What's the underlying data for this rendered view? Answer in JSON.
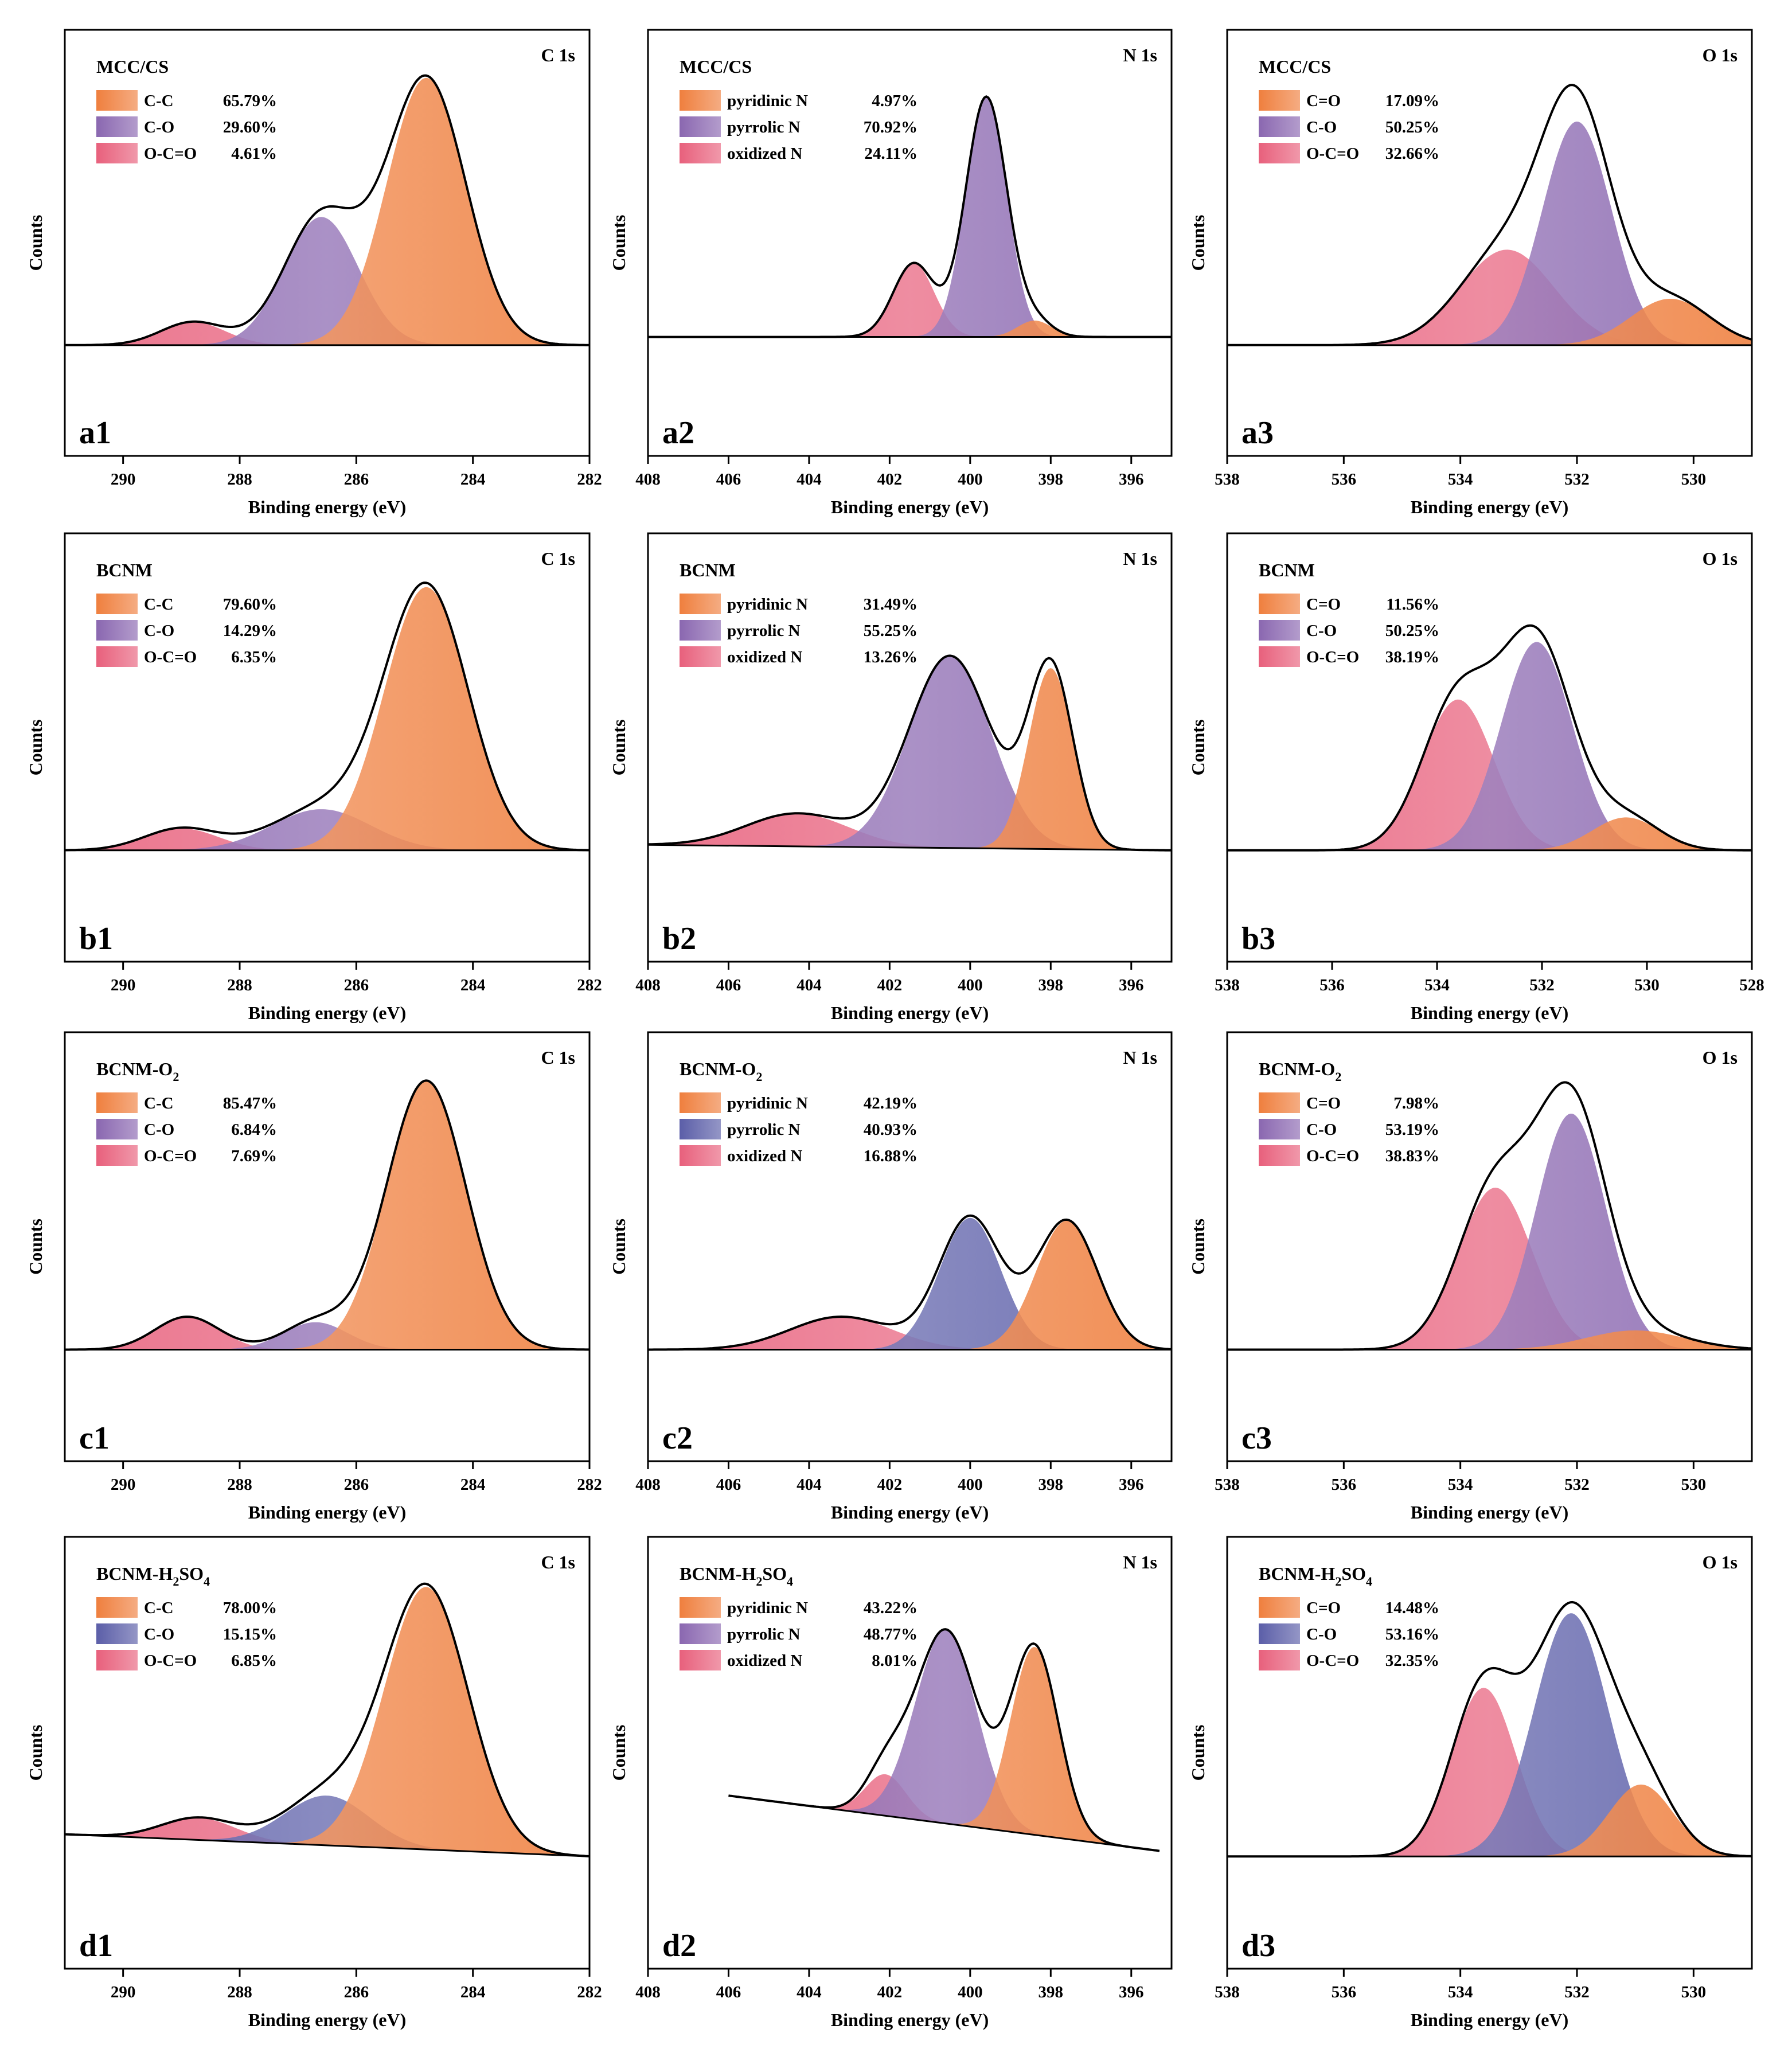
{
  "figure": {
    "colors": {
      "orange": "#ef7f3e",
      "purple": "#8a67b0",
      "blue": "#5b5ea8",
      "pink": "#e8607c",
      "envelope": "#000000"
    },
    "xlabel": "Binding energy (eV)",
    "ylabel": "Counts"
  },
  "chart_data": [
    {
      "id": "a1",
      "type": "area",
      "title": "MCC/CS",
      "region": "C 1s",
      "panel_label": "a1",
      "xlabel": "Binding energy (eV)",
      "ylabel": "Counts",
      "xlim": [
        291,
        282
      ],
      "xticks": [
        290,
        288,
        286,
        284,
        282
      ],
      "baseline": [
        0.0,
        0.0
      ],
      "legend": [
        {
          "label": "C-C",
          "value": "65.79%",
          "color": "orange"
        },
        {
          "label": "C-O",
          "value": "29.60%",
          "color": "purple"
        },
        {
          "label": "O-C=O",
          "value": "4.61%",
          "color": "pink"
        }
      ],
      "peaks": [
        {
          "name": "C-C",
          "center": 284.8,
          "height": 0.98,
          "fwhm": 1.6,
          "color": "orange"
        },
        {
          "name": "C-O",
          "center": 286.6,
          "height": 0.47,
          "fwhm": 1.5,
          "color": "purple"
        },
        {
          "name": "O-C=O",
          "center": 288.8,
          "height": 0.085,
          "fwhm": 1.3,
          "color": "pink"
        }
      ]
    },
    {
      "id": "a2",
      "type": "area",
      "title": "MCC/CS",
      "region": "N 1s",
      "panel_label": "a2",
      "xlabel": "Binding energy (eV)",
      "ylabel": "Counts",
      "xlim": [
        408,
        395
      ],
      "xticks": [
        408,
        406,
        404,
        402,
        400,
        398,
        396
      ],
      "baseline": [
        0.03,
        0.03
      ],
      "legend": [
        {
          "label": "pyridinic N",
          "value": "4.97%",
          "color": "orange"
        },
        {
          "label": "pyrrolic N",
          "value": "70.92%",
          "color": "purple"
        },
        {
          "label": "oxidized N",
          "value": "24.11%",
          "color": "pink"
        }
      ],
      "peaks": [
        {
          "name": "pyridinic N",
          "center": 398.4,
          "height": 0.06,
          "fwhm": 1.0,
          "color": "orange"
        },
        {
          "name": "pyrrolic N",
          "center": 399.6,
          "height": 0.88,
          "fwhm": 1.2,
          "color": "purple"
        },
        {
          "name": "oxidized N",
          "center": 401.4,
          "height": 0.27,
          "fwhm": 1.2,
          "color": "pink"
        }
      ]
    },
    {
      "id": "a3",
      "type": "area",
      "title": "MCC/CS",
      "region": "O 1s",
      "panel_label": "a3",
      "xlabel": "Binding energy (eV)",
      "ylabel": "Counts",
      "xlim": [
        538,
        529
      ],
      "xticks": [
        538,
        536,
        534,
        532,
        530
      ],
      "baseline": [
        0.0,
        0.0
      ],
      "legend": [
        {
          "label": "C=O",
          "value": "17.09%",
          "color": "orange"
        },
        {
          "label": "C-O",
          "value": "50.25%",
          "color": "purple"
        },
        {
          "label": "O-C=O",
          "value": "32.66%",
          "color": "pink"
        }
      ],
      "peaks": [
        {
          "name": "C=O",
          "center": 530.4,
          "height": 0.17,
          "fwhm": 1.6,
          "color": "orange"
        },
        {
          "name": "C-O",
          "center": 532.0,
          "height": 0.82,
          "fwhm": 1.4,
          "color": "purple"
        },
        {
          "name": "O-C=O",
          "center": 533.2,
          "height": 0.35,
          "fwhm": 1.9,
          "color": "pink"
        }
      ]
    },
    {
      "id": "b1",
      "type": "area",
      "title": "BCNM",
      "region": "C 1s",
      "panel_label": "b1",
      "xlabel": "Binding energy (eV)",
      "ylabel": "Counts",
      "xlim": [
        291,
        282
      ],
      "xticks": [
        290,
        288,
        286,
        284,
        282
      ],
      "baseline": [
        0.0,
        0.0
      ],
      "legend": [
        {
          "label": "C-C",
          "value": "79.60%",
          "color": "orange"
        },
        {
          "label": "C-O",
          "value": "14.29%",
          "color": "purple"
        },
        {
          "label": "O-C=O",
          "value": "6.35%",
          "color": "pink"
        }
      ],
      "peaks": [
        {
          "name": "C-C",
          "center": 284.8,
          "height": 0.96,
          "fwhm": 1.7,
          "color": "orange"
        },
        {
          "name": "C-O",
          "center": 286.6,
          "height": 0.15,
          "fwhm": 2.0,
          "color": "purple"
        },
        {
          "name": "O-C=O",
          "center": 289.0,
          "height": 0.08,
          "fwhm": 1.5,
          "color": "pink"
        }
      ]
    },
    {
      "id": "b2",
      "type": "area",
      "title": "BCNM",
      "region": "N 1s",
      "panel_label": "b2",
      "xlabel": "Binding energy (eV)",
      "ylabel": "Counts",
      "xlim": [
        408,
        395
      ],
      "xticks": [
        408,
        406,
        404,
        402,
        400,
        398,
        396
      ],
      "baseline": [
        0.02,
        0.0
      ],
      "legend": [
        {
          "label": "pyridinic N",
          "value": "31.49%",
          "color": "orange"
        },
        {
          "label": "pyrrolic N",
          "value": "55.25%",
          "color": "purple"
        },
        {
          "label": "oxidized N",
          "value": "13.26%",
          "color": "pink"
        }
      ],
      "peaks": [
        {
          "name": "pyridinic N",
          "center": 398.0,
          "height": 0.66,
          "fwhm": 1.3,
          "color": "orange"
        },
        {
          "name": "pyrrolic N",
          "center": 400.5,
          "height": 0.7,
          "fwhm": 2.4,
          "color": "purple"
        },
        {
          "name": "oxidized N",
          "center": 404.3,
          "height": 0.12,
          "fwhm": 3.0,
          "color": "pink"
        }
      ]
    },
    {
      "id": "b3",
      "type": "area",
      "title": "BCNM",
      "region": "O 1s",
      "panel_label": "b3",
      "xlabel": "Binding energy (eV)",
      "ylabel": "Counts",
      "xlim": [
        538,
        528
      ],
      "xticks": [
        538,
        536,
        534,
        532,
        530,
        528
      ],
      "baseline": [
        0.0,
        0.0
      ],
      "legend": [
        {
          "label": "C=O",
          "value": "11.56%",
          "color": "orange"
        },
        {
          "label": "C-O",
          "value": "50.25%",
          "color": "purple"
        },
        {
          "label": "O-C=O",
          "value": "38.19%",
          "color": "pink"
        }
      ],
      "peaks": [
        {
          "name": "C=O",
          "center": 530.4,
          "height": 0.12,
          "fwhm": 1.5,
          "color": "orange"
        },
        {
          "name": "C-O",
          "center": 532.1,
          "height": 0.76,
          "fwhm": 1.6,
          "color": "purple"
        },
        {
          "name": "O-C=O",
          "center": 533.6,
          "height": 0.55,
          "fwhm": 1.6,
          "color": "pink"
        }
      ]
    },
    {
      "id": "c1",
      "type": "area",
      "title": "BCNM-O",
      "title_sub": "2",
      "region": "C 1s",
      "panel_label": "c1",
      "xlabel": "Binding energy (eV)",
      "ylabel": "Counts",
      "xlim": [
        291,
        282
      ],
      "xticks": [
        290,
        288,
        286,
        284,
        282
      ],
      "baseline": [
        0.0,
        0.0
      ],
      "legend": [
        {
          "label": "C-C",
          "value": "85.47%",
          "color": "orange"
        },
        {
          "label": "C-O",
          "value": "6.84%",
          "color": "purple"
        },
        {
          "label": "O-C=O",
          "value": "7.69%",
          "color": "pink"
        }
      ],
      "peaks": [
        {
          "name": "C-C",
          "center": 284.8,
          "height": 0.98,
          "fwhm": 1.6,
          "color": "orange"
        },
        {
          "name": "C-O",
          "center": 286.7,
          "height": 0.1,
          "fwhm": 1.3,
          "color": "purple"
        },
        {
          "name": "O-C=O",
          "center": 288.9,
          "height": 0.12,
          "fwhm": 1.3,
          "color": "pink"
        }
      ]
    },
    {
      "id": "c2",
      "type": "area",
      "title": "BCNM-O",
      "title_sub": "2",
      "region": "N 1s",
      "panel_label": "c2",
      "xlabel": "Binding energy (eV)",
      "ylabel": "Counts",
      "xlim": [
        408,
        395
      ],
      "xticks": [
        408,
        406,
        404,
        402,
        400,
        398,
        396
      ],
      "baseline": [
        0.0,
        0.0
      ],
      "legend": [
        {
          "label": "pyridinic N",
          "value": "42.19%",
          "color": "orange"
        },
        {
          "label": "pyrrolic N",
          "value": "40.93%",
          "color": "blue"
        },
        {
          "label": "oxidized N",
          "value": "16.88%",
          "color": "pink"
        }
      ],
      "peaks": [
        {
          "name": "pyridinic N",
          "center": 397.6,
          "height": 0.47,
          "fwhm": 1.8,
          "color": "orange"
        },
        {
          "name": "pyrrolic N",
          "center": 400.0,
          "height": 0.48,
          "fwhm": 1.8,
          "color": "blue"
        },
        {
          "name": "oxidized N",
          "center": 403.2,
          "height": 0.12,
          "fwhm": 3.0,
          "color": "pink"
        }
      ]
    },
    {
      "id": "c3",
      "type": "area",
      "title": "BCNM-O",
      "title_sub": "2",
      "region": "O 1s",
      "panel_label": "c3",
      "xlabel": "Binding energy (eV)",
      "ylabel": "Counts",
      "xlim": [
        538,
        529
      ],
      "xticks": [
        538,
        536,
        534,
        532,
        530
      ],
      "baseline": [
        0.0,
        0.0
      ],
      "legend": [
        {
          "label": "C=O",
          "value": "7.98%",
          "color": "orange"
        },
        {
          "label": "C-O",
          "value": "53.19%",
          "color": "purple"
        },
        {
          "label": "O-C=O",
          "value": "38.83%",
          "color": "pink"
        }
      ],
      "peaks": [
        {
          "name": "C=O",
          "center": 531.0,
          "height": 0.07,
          "fwhm": 2.0,
          "color": "orange"
        },
        {
          "name": "C-O",
          "center": 532.1,
          "height": 0.86,
          "fwhm": 1.4,
          "color": "purple"
        },
        {
          "name": "O-C=O",
          "center": 533.4,
          "height": 0.59,
          "fwhm": 1.5,
          "color": "pink"
        }
      ]
    },
    {
      "id": "d1",
      "type": "area",
      "title": "BCNM-H",
      "title_sub": "2",
      "title_suffix": "SO",
      "title_sub2": "4",
      "region": "C 1s",
      "panel_label": "d1",
      "xlabel": "Binding energy (eV)",
      "ylabel": "Counts",
      "xlim": [
        291,
        282
      ],
      "xticks": [
        290,
        288,
        286,
        284,
        282
      ],
      "baseline": [
        0.08,
        0.0
      ],
      "legend": [
        {
          "label": "C-C",
          "value": "78.00%",
          "color": "orange"
        },
        {
          "label": "C-O",
          "value": "15.15%",
          "color": "blue"
        },
        {
          "label": "O-C=O",
          "value": "6.85%",
          "color": "pink"
        }
      ],
      "peaks": [
        {
          "name": "C-C",
          "center": 284.8,
          "height": 0.95,
          "fwhm": 1.7,
          "color": "orange"
        },
        {
          "name": "C-O",
          "center": 286.5,
          "height": 0.18,
          "fwhm": 1.7,
          "color": "blue"
        },
        {
          "name": "O-C=O",
          "center": 288.7,
          "height": 0.08,
          "fwhm": 1.5,
          "color": "pink"
        }
      ]
    },
    {
      "id": "d2",
      "type": "area",
      "title": "BCNM-H",
      "title_sub": "2",
      "title_suffix": "SO",
      "title_sub2": "4",
      "region": "N 1s",
      "panel_label": "d2",
      "xlabel": "Binding energy (eV)",
      "ylabel": "Counts",
      "xlim": [
        408,
        395
      ],
      "xticks": [
        408,
        406,
        404,
        402,
        400,
        398,
        396
      ],
      "data_range": [
        406,
        395.3
      ],
      "baseline": [
        0.22,
        0.02
      ],
      "legend": [
        {
          "label": "pyridinic N",
          "value": "43.22%",
          "color": "orange"
        },
        {
          "label": "pyrrolic N",
          "value": "48.77%",
          "color": "purple"
        },
        {
          "label": "oxidized N",
          "value": "8.01%",
          "color": "pink"
        }
      ],
      "peaks": [
        {
          "name": "pyridinic N",
          "center": 398.4,
          "height": 0.68,
          "fwhm": 1.4,
          "color": "orange"
        },
        {
          "name": "pyrrolic N",
          "center": 400.6,
          "height": 0.7,
          "fwhm": 1.8,
          "color": "purple"
        },
        {
          "name": "oxidized N",
          "center": 402.1,
          "height": 0.15,
          "fwhm": 1.2,
          "color": "pink"
        }
      ]
    },
    {
      "id": "d3",
      "type": "area",
      "title": "BCNM-H",
      "title_sub": "2",
      "title_suffix": "SO",
      "title_sub2": "4",
      "region": "O 1s",
      "panel_label": "d3",
      "xlabel": "Binding energy (eV)",
      "ylabel": "Counts",
      "xlim": [
        538,
        529
      ],
      "xticks": [
        538,
        536,
        534,
        532,
        530
      ],
      "baseline": [
        0.0,
        0.0
      ],
      "legend": [
        {
          "label": "C=O",
          "value": "14.48%",
          "color": "orange"
        },
        {
          "label": "C-O",
          "value": "53.16%",
          "color": "blue"
        },
        {
          "label": "O-C=O",
          "value": "32.35%",
          "color": "pink"
        }
      ],
      "peaks": [
        {
          "name": "C=O",
          "center": 530.9,
          "height": 0.26,
          "fwhm": 1.3,
          "color": "orange"
        },
        {
          "name": "C-O",
          "center": 532.1,
          "height": 0.88,
          "fwhm": 1.5,
          "color": "blue"
        },
        {
          "name": "O-C=O",
          "center": 533.6,
          "height": 0.61,
          "fwhm": 1.3,
          "color": "pink"
        }
      ]
    }
  ]
}
